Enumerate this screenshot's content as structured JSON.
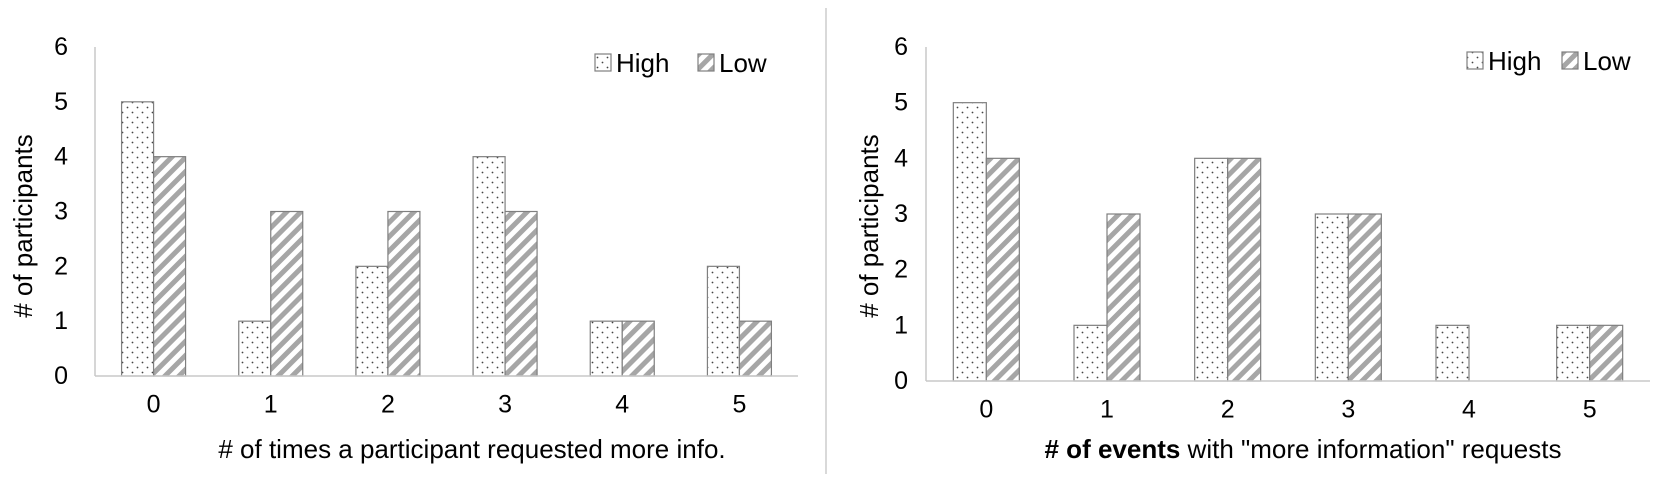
{
  "colors": {
    "bar_edge": "#7f7f7f",
    "high_fill": "#ffffff",
    "high_dot": "#444444",
    "low_stripe": "#a6a6a6",
    "axis": "#c8c8c8",
    "divider": "#d9d9d9"
  },
  "chart_data": [
    {
      "type": "bar",
      "categories": [
        "0",
        "1",
        "2",
        "3",
        "4",
        "5"
      ],
      "series": [
        {
          "name": "High",
          "pattern": "dots",
          "values": [
            5,
            1,
            2,
            4,
            1,
            2
          ]
        },
        {
          "name": "Low",
          "pattern": "diagonal-stripes",
          "values": [
            4,
            3,
            3,
            3,
            1,
            1
          ]
        }
      ],
      "xlabel": "# of times a participant requested more info.",
      "ylabel": "# of participants",
      "ylim": [
        0,
        6
      ],
      "yticks": [
        "0",
        "1",
        "2",
        "3",
        "4",
        "5",
        "6"
      ],
      "legend_position": "top-right",
      "grid": false
    },
    {
      "type": "bar",
      "categories": [
        "0",
        "1",
        "2",
        "3",
        "4",
        "5"
      ],
      "series": [
        {
          "name": "High",
          "pattern": "dots",
          "values": [
            5,
            1,
            4,
            3,
            1,
            1
          ]
        },
        {
          "name": "Low",
          "pattern": "diagonal-stripes",
          "values": [
            4,
            3,
            4,
            3,
            0,
            1
          ]
        }
      ],
      "xlabel_bold": "# of events",
      "xlabel_rest": " with \"more information\" requests",
      "ylabel": "# of participants",
      "ylim": [
        0,
        6
      ],
      "yticks": [
        "0",
        "1",
        "2",
        "3",
        "4",
        "5",
        "6"
      ],
      "legend_position": "top-right",
      "grid": false
    }
  ]
}
